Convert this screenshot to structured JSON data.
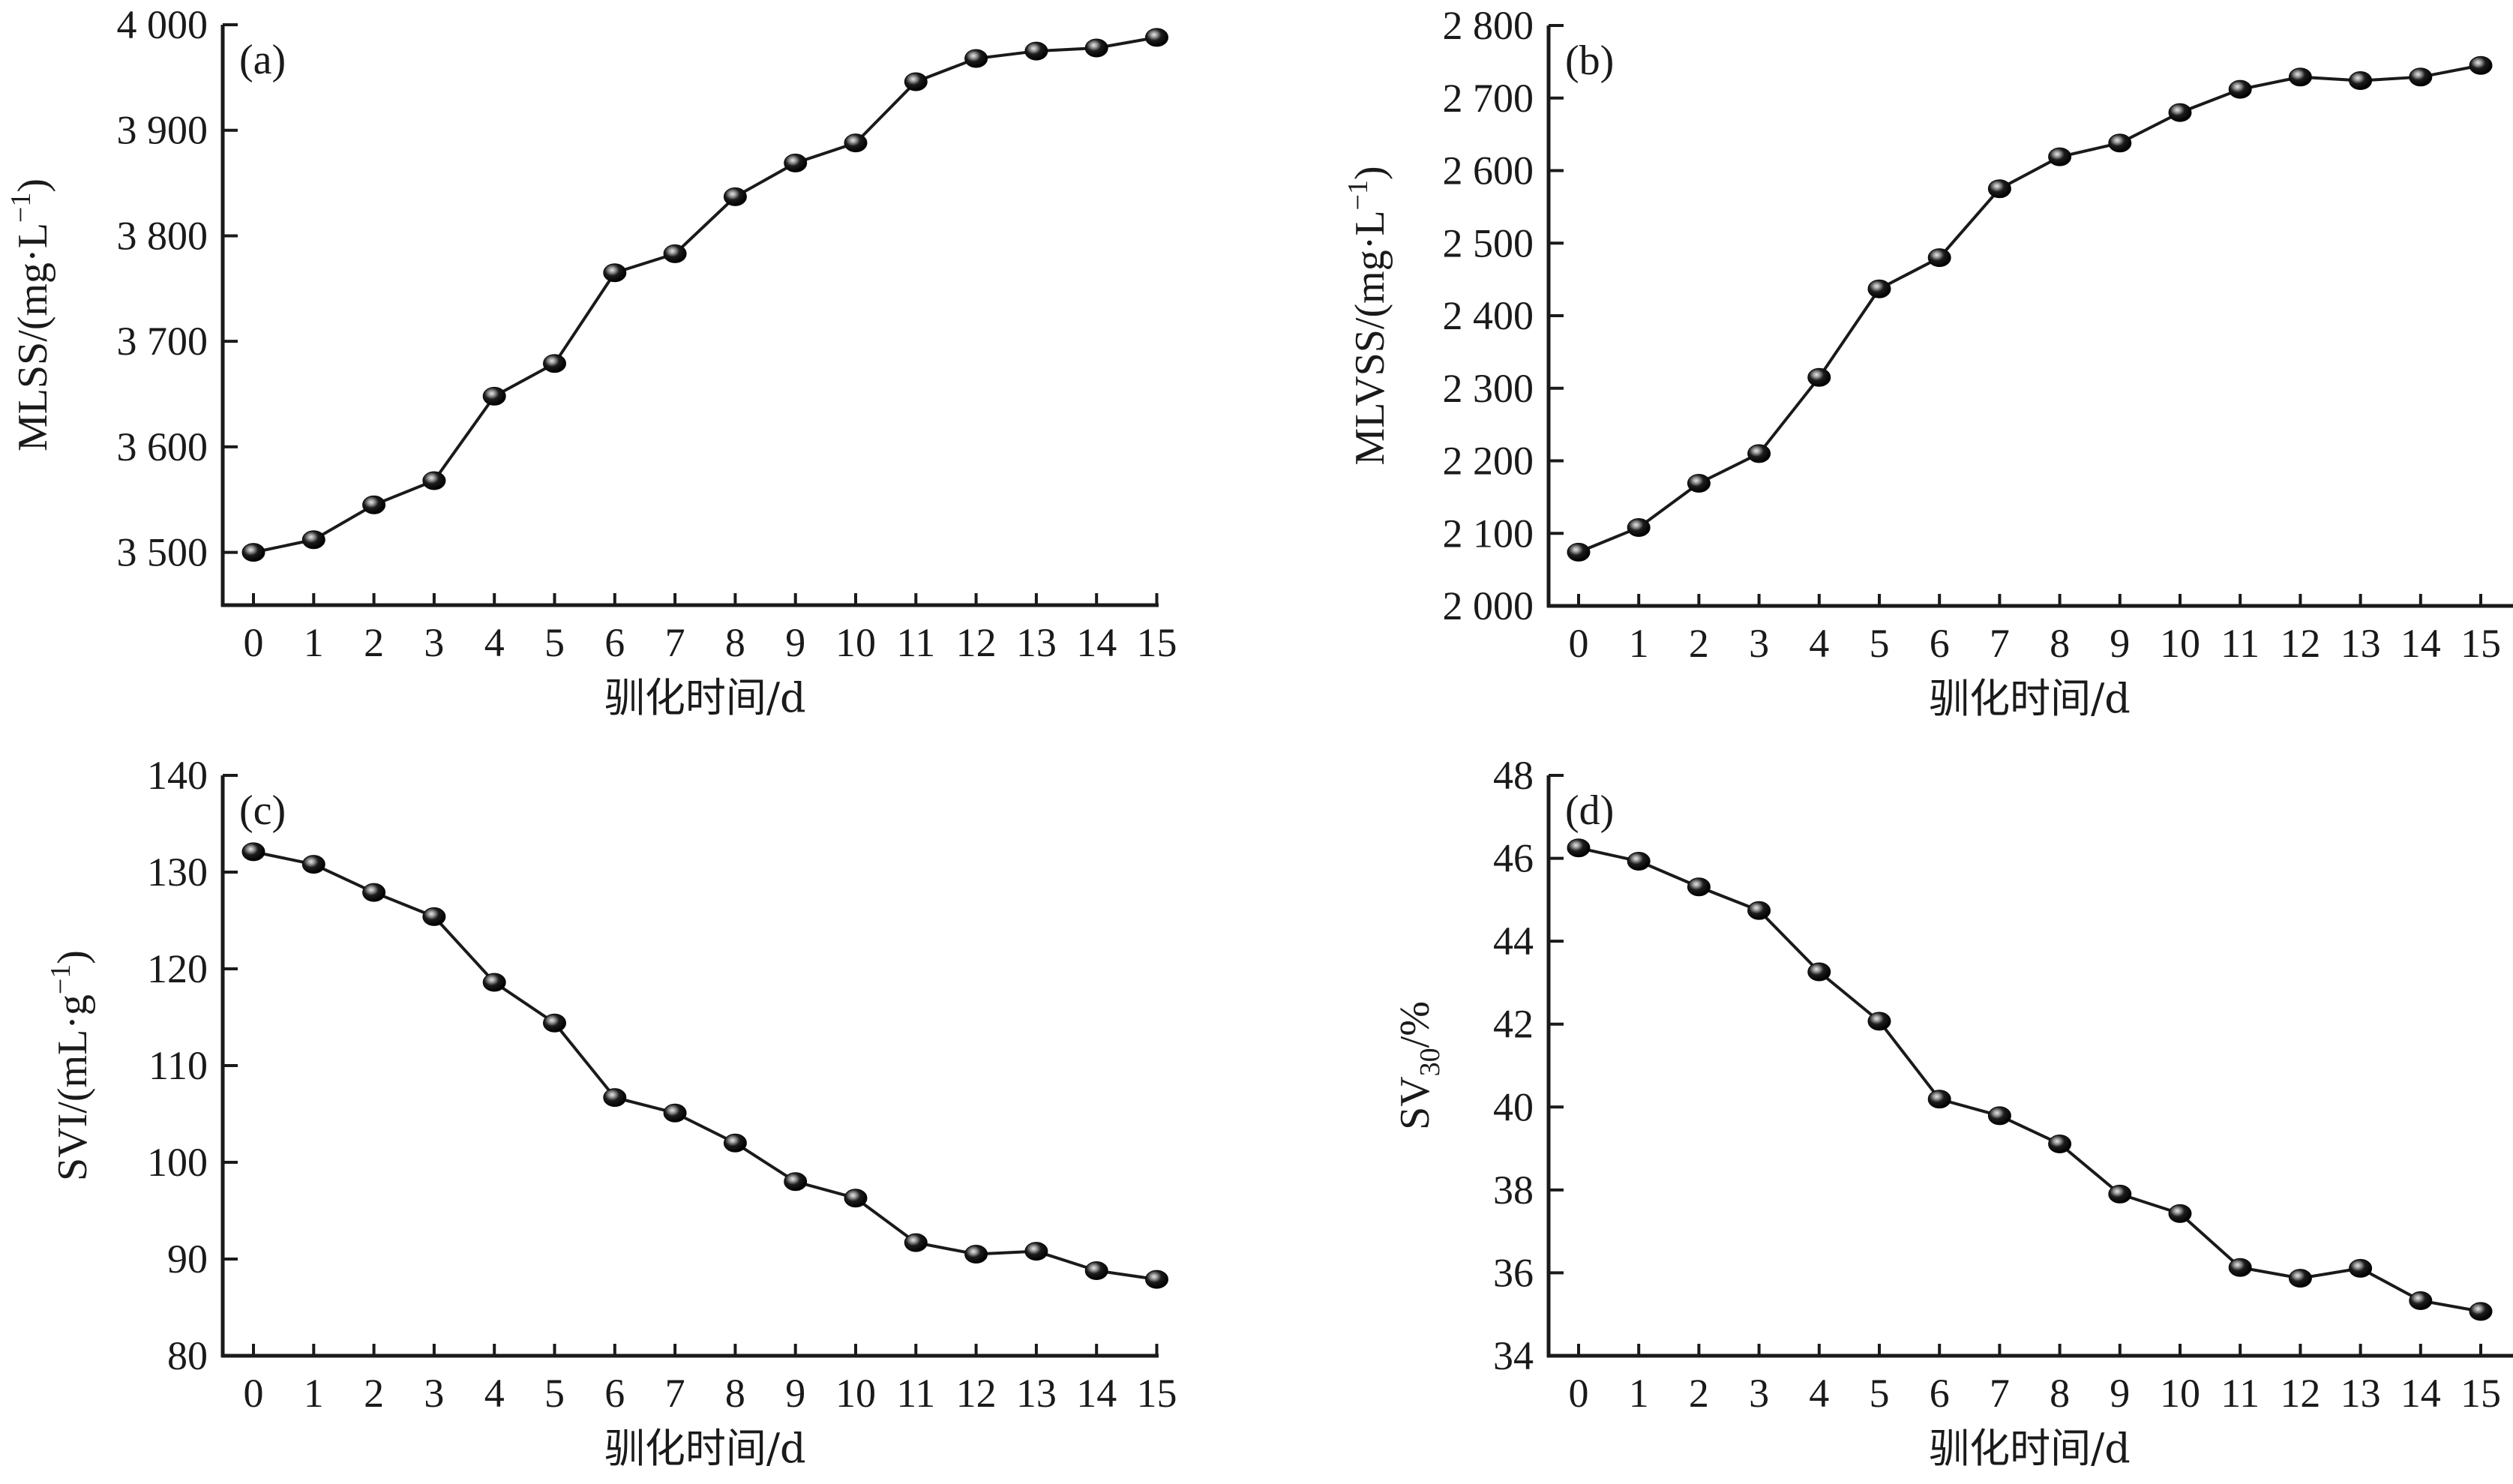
{
  "colors": {
    "line": "#1a1a1a",
    "marker": "#151515",
    "marker_highlight": "#d8d8d8"
  },
  "chart_data": [
    {
      "type": "line",
      "panel": "(a)",
      "xlabel": "驯化时间/d",
      "ylabel": "MLSS/(mg·L⁻¹)",
      "ylabel_parts": {
        "main": "MLSS/(mg·L",
        "sup": "−1",
        "close": ")"
      },
      "x": [
        0,
        1,
        2,
        3,
        4,
        5,
        6,
        7,
        8,
        9,
        10,
        11,
        12,
        13,
        14,
        15
      ],
      "x_tick_labels": [
        "0",
        "1",
        "2",
        "3",
        "4",
        "5",
        "6",
        "7",
        "8",
        "9",
        "10",
        "11",
        "12",
        "13",
        "14",
        "15"
      ],
      "y_ticks": [
        3500,
        3600,
        3700,
        3800,
        3900,
        4000
      ],
      "y_tick_labels": [
        "3 500",
        "3 600",
        "3 700",
        "3 800",
        "3 900",
        "4 000"
      ],
      "ylim": [
        3450,
        4000
      ],
      "series": [
        {
          "name": "MLSS",
          "values": [
            3500,
            3512,
            3545,
            3568,
            3648,
            3679,
            3765,
            3783,
            3837,
            3869,
            3888,
            3946,
            3968,
            3975,
            3978,
            3988
          ]
        }
      ]
    },
    {
      "type": "line",
      "panel": "(b)",
      "xlabel": "驯化时间/d",
      "ylabel": "MLVSS/(mg·L⁻¹)",
      "ylabel_parts": {
        "main": "MLVSS/(mg·L",
        "sup": "−1",
        "close": ")"
      },
      "x": [
        0,
        1,
        2,
        3,
        4,
        5,
        6,
        7,
        8,
        9,
        10,
        11,
        12,
        13,
        14,
        15
      ],
      "x_tick_labels": [
        "0",
        "1",
        "2",
        "3",
        "4",
        "5",
        "6",
        "7",
        "8",
        "9",
        "10",
        "11",
        "12",
        "13",
        "14",
        "15"
      ],
      "y_ticks": [
        2000,
        2100,
        2200,
        2300,
        2400,
        2500,
        2600,
        2700,
        2800
      ],
      "y_tick_labels": [
        "2 000",
        "2 100",
        "2 200",
        "2 300",
        "2 400",
        "2 500",
        "2 600",
        "2 700",
        "2 800"
      ],
      "ylim": [
        2000,
        2800
      ],
      "series": [
        {
          "name": "MLVSS",
          "values": [
            2074,
            2108,
            2169,
            2210,
            2315,
            2437,
            2480,
            2575,
            2619,
            2638,
            2680,
            2712,
            2729,
            2724,
            2729,
            2745
          ]
        }
      ]
    },
    {
      "type": "line",
      "panel": "(c)",
      "xlabel": "驯化时间/d",
      "ylabel": "SVI/(mL·g⁻¹)",
      "ylabel_parts": {
        "main": "SVI/(mL·g",
        "sup": "−1",
        "close": ")"
      },
      "x": [
        0,
        1,
        2,
        3,
        4,
        5,
        6,
        7,
        8,
        9,
        10,
        11,
        12,
        13,
        14,
        15
      ],
      "x_tick_labels": [
        "0",
        "1",
        "2",
        "3",
        "4",
        "5",
        "6",
        "7",
        "8",
        "9",
        "10",
        "11",
        "12",
        "13",
        "14",
        "15"
      ],
      "y_ticks": [
        80,
        90,
        100,
        110,
        120,
        130,
        140
      ],
      "y_tick_labels": [
        "80",
        "90",
        "100",
        "110",
        "120",
        "130",
        "140"
      ],
      "ylim": [
        80,
        140
      ],
      "series": [
        {
          "name": "SVI",
          "values": [
            132.1,
            130.8,
            127.9,
            125.4,
            118.6,
            114.4,
            106.7,
            105.1,
            102.0,
            98.0,
            96.3,
            91.7,
            90.5,
            90.8,
            88.8,
            87.9
          ]
        }
      ]
    },
    {
      "type": "line",
      "panel": "(d)",
      "xlabel": "驯化时间/d",
      "ylabel": "SV30/%",
      "ylabel_parts": {
        "main": "SV",
        "sub": "30",
        "close": "/%"
      },
      "x": [
        0,
        1,
        2,
        3,
        4,
        5,
        6,
        7,
        8,
        9,
        10,
        11,
        12,
        13,
        14,
        15
      ],
      "x_tick_labels": [
        "0",
        "1",
        "2",
        "3",
        "4",
        "5",
        "6",
        "7",
        "8",
        "9",
        "10",
        "11",
        "12",
        "13",
        "14",
        "15"
      ],
      "y_ticks": [
        34,
        36,
        38,
        40,
        42,
        44,
        46,
        48
      ],
      "y_tick_labels": [
        "34",
        "36",
        "38",
        "40",
        "42",
        "44",
        "46",
        "48"
      ],
      "ylim": [
        34,
        48
      ],
      "series": [
        {
          "name": "SV30",
          "values": [
            46.25,
            45.93,
            45.31,
            44.74,
            43.26,
            42.07,
            40.19,
            39.79,
            39.11,
            37.9,
            37.43,
            36.13,
            35.87,
            36.11,
            35.33,
            35.07
          ]
        }
      ]
    }
  ]
}
